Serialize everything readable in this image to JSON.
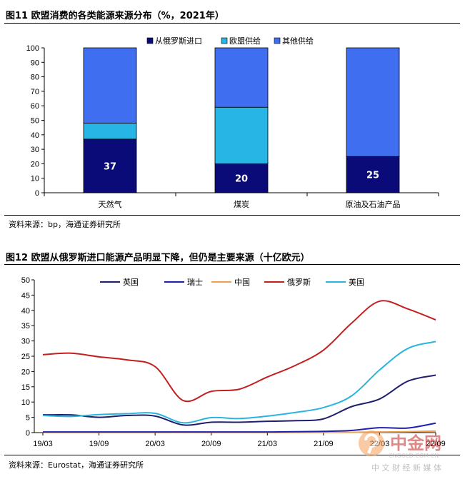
{
  "figure1": {
    "title": "图11 欧盟消费的各类能源来源分布（%，2021年）",
    "source": "资料来源：bp，海通证券研究所"
  },
  "figure2": {
    "title": "图12 欧盟从俄罗斯进口能源产品明显下降，但仍是主要来源（十亿欧元）",
    "source": "资料来源：Eurostat，海通证券研究所"
  },
  "watermark": {
    "brand": "中金网",
    "url": "CNGOLD.COM.CN",
    "tagline": "中 文 财 经 新 媒 体"
  },
  "colors": {
    "russia_import": "#0a0a78",
    "eu_supply": "#27b5e6",
    "other_supply": "#3f6ff0",
    "uk": "#1f1f6e",
    "switzerland": "#2020b0",
    "china": "#f0a050",
    "russia": "#c41e1e",
    "usa": "#2ab4e0"
  },
  "chart_data": [
    {
      "type": "bar",
      "stacked": true,
      "categories": [
        "天然气",
        "煤炭",
        "原油及石油产品"
      ],
      "series": [
        {
          "name": "从俄罗斯进口",
          "values": [
            37,
            20,
            25
          ],
          "color_key": "russia_import"
        },
        {
          "name": "欧盟供给",
          "values": [
            11,
            39,
            0
          ],
          "color_key": "eu_supply"
        },
        {
          "name": "其他供给",
          "values": [
            52,
            41,
            75
          ],
          "color_key": "other_supply"
        }
      ],
      "data_labels": [
        "37",
        "20",
        "25"
      ],
      "ylim": [
        0,
        100
      ],
      "yticks": [
        "0",
        "10",
        "20",
        "30",
        "40",
        "50",
        "60",
        "70",
        "80",
        "90",
        "100"
      ],
      "legend": "top-right"
    },
    {
      "type": "line",
      "x": [
        "19/03",
        "19/06",
        "19/09",
        "19/12",
        "20/03",
        "20/06",
        "20/09",
        "20/12",
        "21/03",
        "21/06",
        "21/09",
        "21/12",
        "22/03",
        "22/06",
        "22/09"
      ],
      "xticks": [
        "19/03",
        "19/09",
        "20/03",
        "20/09",
        "21/03",
        "21/09",
        "22/03",
        "22/09"
      ],
      "ylim": [
        0,
        50
      ],
      "yticks": [
        "0",
        "5",
        "10",
        "15",
        "20",
        "25",
        "30",
        "35",
        "40",
        "45",
        "50"
      ],
      "series": [
        {
          "name": "英国",
          "color_key": "uk",
          "values": [
            5.8,
            5.8,
            5.0,
            5.6,
            5.4,
            2.5,
            3.4,
            3.4,
            3.7,
            3.9,
            4.5,
            8.5,
            11.0,
            16.8,
            18.8
          ]
        },
        {
          "name": "瑞士",
          "color_key": "switzerland",
          "values": [
            0.2,
            0.2,
            0.2,
            0.2,
            0.2,
            0.2,
            0.2,
            0.2,
            0.2,
            0.3,
            0.4,
            0.7,
            1.6,
            1.5,
            3.1
          ]
        },
        {
          "name": "中国",
          "color_key": "china",
          "values": [
            0.1,
            0.1,
            0.1,
            0.1,
            0.1,
            0.1,
            0.1,
            0.1,
            0.1,
            0.1,
            0.1,
            0.1,
            0.2,
            0.3,
            0.5
          ]
        },
        {
          "name": "俄罗斯",
          "color_key": "russia",
          "values": [
            25.5,
            26.0,
            24.8,
            23.8,
            21.6,
            10.5,
            13.5,
            14.2,
            18.2,
            22.0,
            27.0,
            35.8,
            43.0,
            40.5,
            36.9
          ]
        },
        {
          "name": "美国",
          "color_key": "usa",
          "values": [
            5.6,
            5.3,
            5.9,
            6.2,
            6.3,
            3.2,
            4.9,
            4.6,
            5.4,
            6.6,
            8.2,
            12.0,
            20.5,
            27.5,
            29.8
          ]
        }
      ],
      "legend": "top"
    }
  ]
}
